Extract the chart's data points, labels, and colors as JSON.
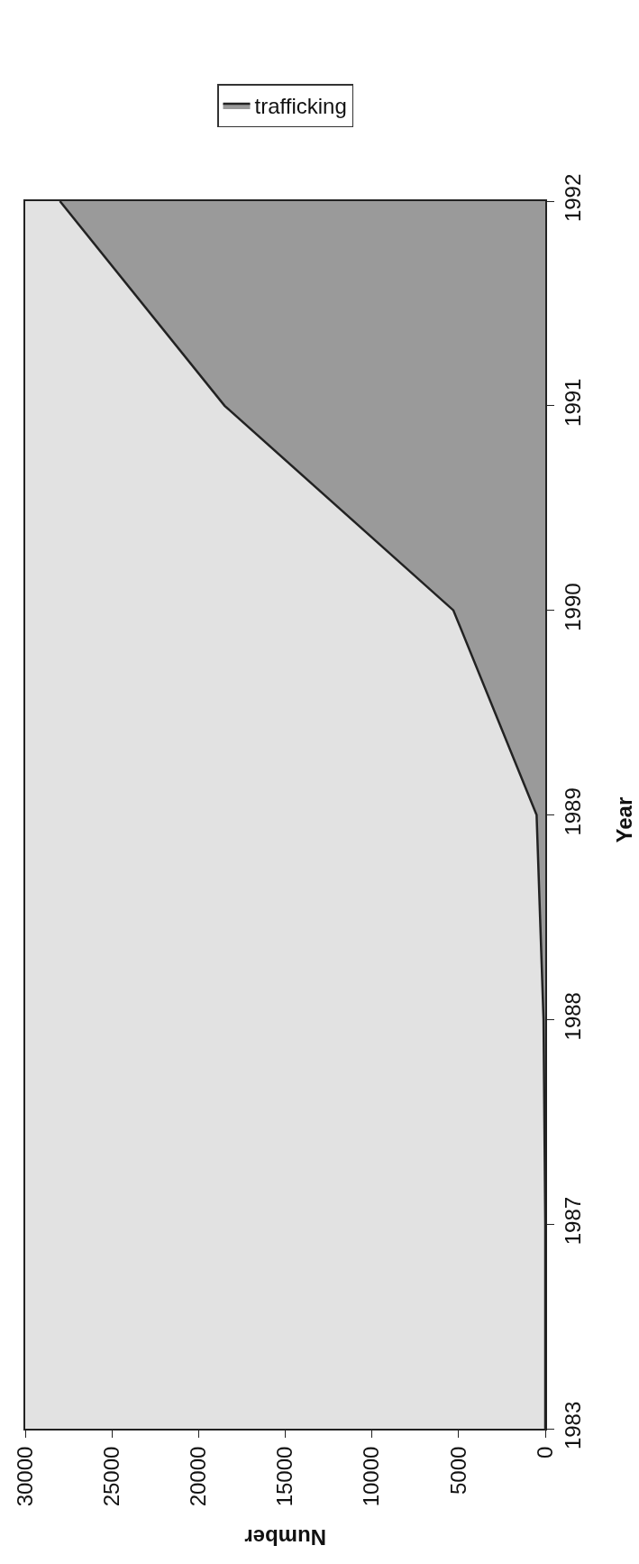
{
  "chart_data": {
    "type": "area",
    "orientation": "horizontal",
    "xlabel": "Number",
    "ylabel": "Year",
    "categories": [
      "1992",
      "1991",
      "1990",
      "1989",
      "1988",
      "1987",
      "1983"
    ],
    "series": [
      {
        "name": "trafficking",
        "color": "#9a9a9a",
        "values": [
          28000,
          18500,
          5300,
          500,
          100,
          0,
          0
        ]
      }
    ],
    "xlim": [
      30000,
      0
    ],
    "xticks": [
      0,
      5000,
      10000,
      15000,
      20000,
      25000,
      30000
    ],
    "legend": "top",
    "grid": false
  }
}
